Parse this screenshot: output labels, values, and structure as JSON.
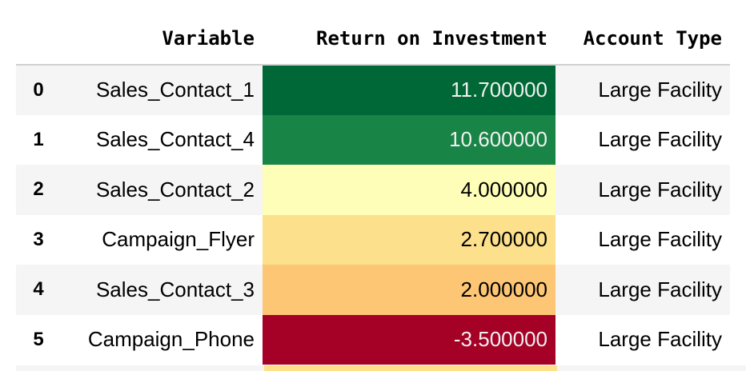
{
  "table": {
    "columns": [
      "Variable",
      "Return on Investment",
      "Account Type"
    ],
    "rows": [
      {
        "index": "0",
        "variable": "Sales_Contact_1",
        "roi": "11.700000",
        "account_type": "Large Facility",
        "roi_bg": "#006837",
        "roi_fg": "#f1f1f1"
      },
      {
        "index": "1",
        "variable": "Sales_Contact_4",
        "roi": "10.600000",
        "account_type": "Large Facility",
        "roi_bg": "#188446",
        "roi_fg": "#f1f1f1"
      },
      {
        "index": "2",
        "variable": "Sales_Contact_2",
        "roi": "4.000000",
        "account_type": "Large Facility",
        "roi_bg": "#fefeb8",
        "roi_fg": "#000000"
      },
      {
        "index": "3",
        "variable": "Campaign_Flyer",
        "roi": "2.700000",
        "account_type": "Large Facility",
        "roi_bg": "#fde08b",
        "roi_fg": "#000000"
      },
      {
        "index": "4",
        "variable": "Sales_Contact_3",
        "roi": "2.000000",
        "account_type": "Large Facility",
        "roi_bg": "#fdc675",
        "roi_fg": "#000000"
      },
      {
        "index": "5",
        "variable": "Campaign_Phone",
        "roi": "-3.500000",
        "account_type": "Large Facility",
        "roi_bg": "#a50026",
        "roi_fg": "#f1f1f1"
      }
    ]
  }
}
